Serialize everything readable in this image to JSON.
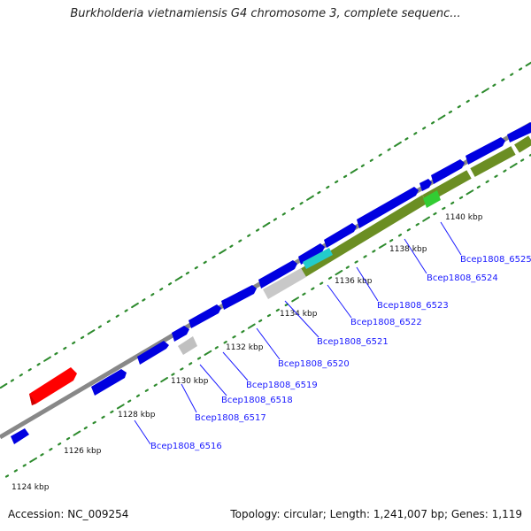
{
  "title": "Burkholderia vietnamiensis G4 chromosome 3, complete sequenc...",
  "footer": {
    "accession": "Accession: NC_009254",
    "summary": "Topology: circular; Length: 1,241,007 bp; Genes: 1,119"
  },
  "colors": {
    "cds": "#0000e0",
    "rna": "#ff0000",
    "gray_feature": "#bbbbbb",
    "highlight_cyan": "#22cccc",
    "highlight_green": "#33cc33",
    "olive_track": "#6b8e23",
    "backbone": "#888888",
    "tick": "#2e8b2e",
    "label": "#1a1aff"
  },
  "kbp_labels": [
    "1124 kbp",
    "1126 kbp",
    "1128 kbp",
    "1130 kbp",
    "1132 kbp",
    "1134 kbp",
    "1136 kbp",
    "1138 kbp",
    "1140 kbp"
  ],
  "gene_labels": [
    "Bcep1808_6516",
    "Bcep1808_6517",
    "Bcep1808_6518",
    "Bcep1808_6519",
    "Bcep1808_6520",
    "Bcep1808_6521",
    "Bcep1808_6522",
    "Bcep1808_6523",
    "Bcep1808_6524",
    "Bcep1808_6525"
  ]
}
